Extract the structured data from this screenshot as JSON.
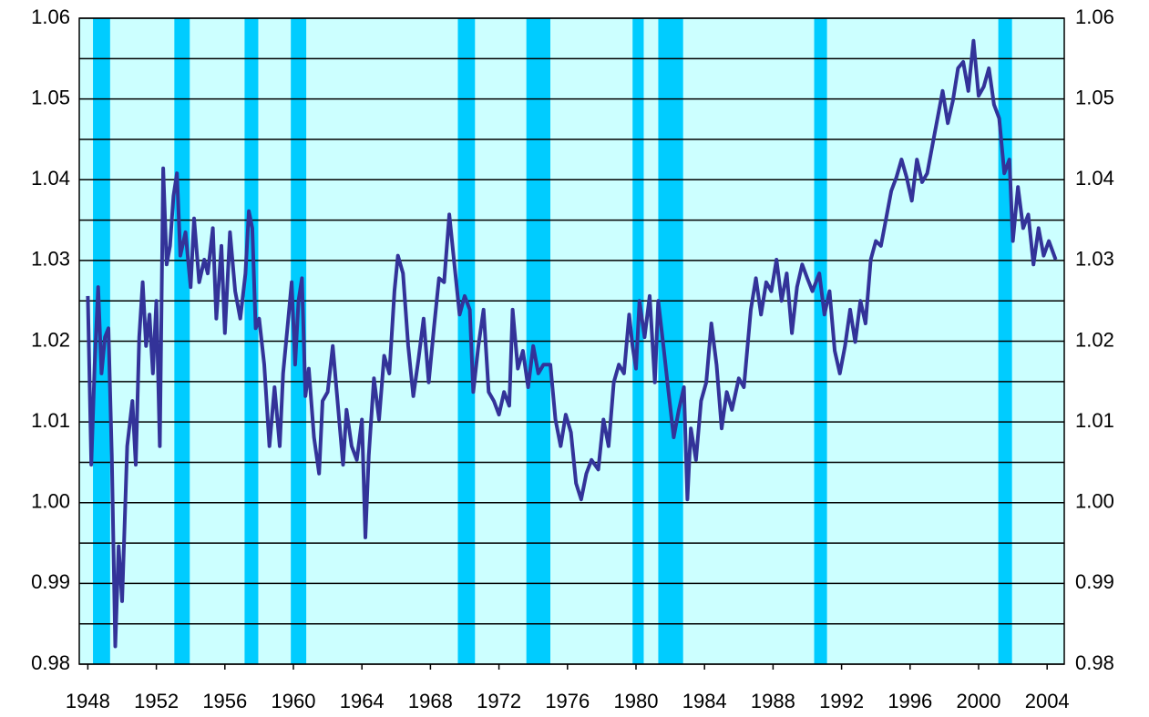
{
  "chart_data": {
    "type": "line",
    "x": [
      1948.0,
      1948.2,
      1948.4,
      1948.6,
      1948.8,
      1949.0,
      1949.2,
      1949.4,
      1949.6,
      1949.8,
      1950.0,
      1950.3,
      1950.6,
      1950.8,
      1951.0,
      1951.2,
      1951.4,
      1951.6,
      1951.8,
      1952.0,
      1952.2,
      1952.4,
      1952.6,
      1952.8,
      1953.0,
      1953.2,
      1953.4,
      1953.7,
      1954.0,
      1954.2,
      1954.5,
      1954.8,
      1955.0,
      1955.3,
      1955.5,
      1955.8,
      1956.0,
      1956.3,
      1956.6,
      1956.9,
      1957.2,
      1957.4,
      1957.6,
      1957.8,
      1958.0,
      1958.3,
      1958.6,
      1958.9,
      1959.2,
      1959.4,
      1959.7,
      1959.9,
      1960.1,
      1960.3,
      1960.5,
      1960.7,
      1960.9,
      1961.2,
      1961.5,
      1961.7,
      1962.0,
      1962.3,
      1962.6,
      1962.9,
      1963.1,
      1963.4,
      1963.7,
      1964.0,
      1964.2,
      1964.4,
      1964.7,
      1965.0,
      1965.3,
      1965.6,
      1965.9,
      1966.1,
      1966.4,
      1966.7,
      1967.0,
      1967.3,
      1967.6,
      1967.9,
      1968.2,
      1968.5,
      1968.8,
      1969.1,
      1969.4,
      1969.7,
      1970.0,
      1970.3,
      1970.5,
      1970.8,
      1971.1,
      1971.4,
      1971.7,
      1972.0,
      1972.3,
      1972.6,
      1972.8,
      1973.1,
      1973.4,
      1973.7,
      1974.0,
      1974.3,
      1974.6,
      1975.0,
      1975.3,
      1975.6,
      1975.9,
      1976.2,
      1976.5,
      1976.8,
      1977.1,
      1977.4,
      1977.8,
      1978.1,
      1978.4,
      1978.7,
      1979.0,
      1979.3,
      1979.6,
      1979.8,
      1980.0,
      1980.2,
      1980.5,
      1980.8,
      1981.1,
      1981.3,
      1981.6,
      1981.9,
      1982.2,
      1982.5,
      1982.8,
      1983.0,
      1983.2,
      1983.5,
      1983.8,
      1984.1,
      1984.4,
      1984.7,
      1985.0,
      1985.3,
      1985.6,
      1986.0,
      1986.3,
      1986.7,
      1987.0,
      1987.3,
      1987.6,
      1987.9,
      1988.2,
      1988.5,
      1988.8,
      1989.1,
      1989.4,
      1989.7,
      1990.0,
      1990.3,
      1990.7,
      1991.0,
      1991.3,
      1991.6,
      1991.9,
      1992.2,
      1992.5,
      1992.8,
      1993.1,
      1993.4,
      1993.7,
      1994.0,
      1994.3,
      1994.6,
      1994.9,
      1995.2,
      1995.5,
      1995.8,
      1996.1,
      1996.4,
      1996.7,
      1997.0,
      1997.3,
      1997.6,
      1997.9,
      1998.2,
      1998.5,
      1998.8,
      1999.1,
      1999.4,
      1999.7,
      2000.0,
      2000.3,
      2000.6,
      2000.9,
      2001.2,
      2001.5,
      2001.8,
      2002.0,
      2002.3,
      2002.6,
      2002.9,
      2003.2,
      2003.5,
      2003.8,
      2004.1,
      2004.5
    ],
    "series": [
      {
        "color": "#333399",
        "values": [
          1.0256,
          1.0047,
          1.0171,
          1.0267,
          1.016,
          1.0205,
          1.0216,
          1.0058,
          0.9822,
          0.9946,
          0.9878,
          1.007,
          1.0126,
          1.0047,
          1.0205,
          1.0273,
          1.0194,
          1.0233,
          1.016,
          1.025,
          1.007,
          1.0414,
          1.0295,
          1.0318,
          1.038,
          1.0408,
          1.0306,
          1.0335,
          1.0267,
          1.0352,
          1.0273,
          1.0301,
          1.0284,
          1.034,
          1.0228,
          1.0318,
          1.021,
          1.0335,
          1.0262,
          1.0228,
          1.0284,
          1.0361,
          1.034,
          1.0216,
          1.0228,
          1.0171,
          1.007,
          1.0143,
          1.007,
          1.016,
          1.0228,
          1.0273,
          1.0171,
          1.025,
          1.0278,
          1.0132,
          1.0166,
          1.0081,
          1.0036,
          1.0126,
          1.0137,
          1.0194,
          1.012,
          1.0047,
          1.0115,
          1.007,
          1.0053,
          1.0103,
          0.9957,
          1.0058,
          1.0154,
          1.0103,
          1.0182,
          1.016,
          1.0262,
          1.0306,
          1.0284,
          1.0194,
          1.0132,
          1.0177,
          1.0228,
          1.0149,
          1.0216,
          1.0278,
          1.0273,
          1.0357,
          1.0295,
          1.0233,
          1.0256,
          1.0239,
          1.0137,
          1.0194,
          1.0239,
          1.0137,
          1.0126,
          1.0109,
          1.0137,
          1.012,
          1.0239,
          1.0166,
          1.0188,
          1.0143,
          1.0194,
          1.016,
          1.0171,
          1.0171,
          1.0103,
          1.007,
          1.0109,
          1.0087,
          1.0024,
          1.0004,
          1.0036,
          1.0053,
          1.0041,
          1.0103,
          1.007,
          1.0149,
          1.0171,
          1.016,
          1.0233,
          1.0194,
          1.0166,
          1.025,
          1.0205,
          1.0256,
          1.0149,
          1.025,
          1.0194,
          1.0137,
          1.0081,
          1.0115,
          1.0143,
          1.0004,
          1.0092,
          1.0053,
          1.0126,
          1.0149,
          1.0222,
          1.0171,
          1.0092,
          1.0137,
          1.0115,
          1.0154,
          1.0143,
          1.0239,
          1.0278,
          1.0233,
          1.0273,
          1.0262,
          1.0301,
          1.025,
          1.0284,
          1.021,
          1.0267,
          1.0295,
          1.0278,
          1.0262,
          1.0284,
          1.0233,
          1.0262,
          1.0188,
          1.016,
          1.0194,
          1.0239,
          1.0199,
          1.025,
          1.0222,
          1.0301,
          1.0324,
          1.0318,
          1.0352,
          1.0386,
          1.0403,
          1.0425,
          1.0403,
          1.0374,
          1.0425,
          1.0397,
          1.0408,
          1.0442,
          1.0476,
          1.051,
          1.047,
          1.0498,
          1.0538,
          1.0546,
          1.051,
          1.0572,
          1.0504,
          1.0515,
          1.0538,
          1.0493,
          1.0476,
          1.0408,
          1.0425,
          1.0324,
          1.0391,
          1.034,
          1.0357,
          1.0295,
          1.034,
          1.0306,
          1.0324,
          1.0301
        ]
      }
    ],
    "recessions": [
      [
        1948.3,
        1949.3
      ],
      [
        1953.05,
        1953.95
      ],
      [
        1957.15,
        1957.95
      ],
      [
        1959.85,
        1960.75
      ],
      [
        1969.6,
        1970.6
      ],
      [
        1973.6,
        1975.0
      ],
      [
        1979.8,
        1980.45
      ],
      [
        1981.3,
        1982.75
      ],
      [
        1990.4,
        1991.15
      ],
      [
        2001.15,
        2001.95
      ]
    ],
    "recession_color": "#00ccff",
    "background_color": "#ccffff",
    "xlim": [
      1947.5,
      2005
    ],
    "xticks": [
      1948,
      1952,
      1956,
      1960,
      1964,
      1968,
      1972,
      1976,
      1980,
      1984,
      1988,
      1992,
      1996,
      2000,
      2004
    ],
    "ylim": [
      0.98,
      1.06
    ],
    "yticks": [
      0.98,
      0.99,
      {
        "value": 1,
        "label": "1.00"
      },
      1.01,
      1.02,
      1.03,
      1.04,
      1.05,
      1.06
    ],
    "minor_yticks": [
      0.985,
      0.995,
      1.005,
      1.015,
      1.025,
      1.035,
      1.045,
      1.055
    ],
    "grid": true,
    "right_axis": true
  }
}
